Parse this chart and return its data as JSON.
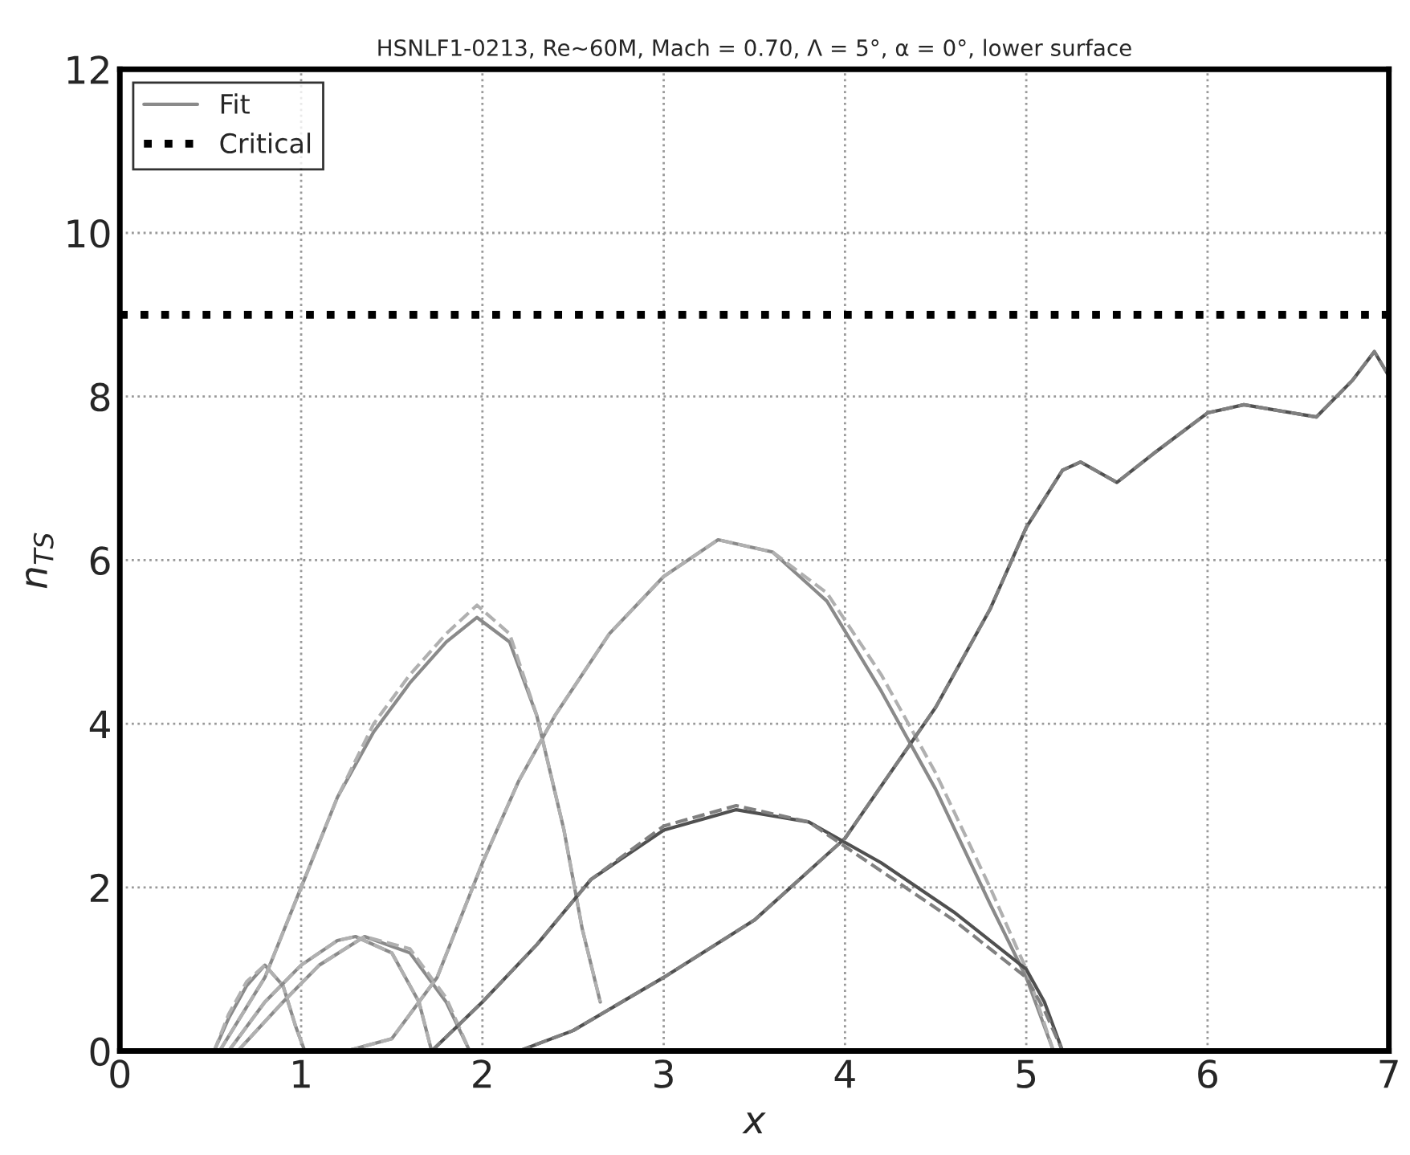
{
  "chart_data": {
    "type": "line",
    "title": "HSNLF1-0213, Re~60M, Mach = 0.70, Λ = 5°, α = 0°, lower surface",
    "xlabel": "x",
    "ylabel": "n$_{TS}$",
    "xlim": [
      0,
      7
    ],
    "xticks": [
      0,
      1,
      2,
      3,
      4,
      5,
      6,
      7
    ],
    "ylim": [
      0,
      12
    ],
    "yticks": [
      0,
      2,
      4,
      6,
      8,
      10,
      12
    ],
    "grid": true,
    "legend": "top left",
    "series": [
      {
        "name": "Fit",
        "color": "#8a8a8a",
        "line_style": "solid",
        "x": [
          0.52,
          0.6,
          0.7,
          0.8,
          0.9,
          0.97,
          1.02
        ],
        "values": [
          0,
          0.4,
          0.8,
          1.05,
          0.8,
          0.3,
          0
        ]
      },
      {
        "color": "#b0b0b0",
        "line_style": "dashed",
        "x": [
          0.52,
          0.6,
          0.7,
          0.8,
          0.9,
          0.97,
          1.02
        ],
        "values": [
          0,
          0.45,
          0.85,
          1.05,
          0.8,
          0.3,
          0
        ]
      },
      {
        "color": "#8a8a8a",
        "line_style": "solid",
        "x": [
          0.6,
          0.8,
          1.0,
          1.2,
          1.3,
          1.5,
          1.65,
          1.72
        ],
        "values": [
          0,
          0.6,
          1.05,
          1.35,
          1.4,
          1.2,
          0.6,
          0
        ]
      },
      {
        "color": "#b0b0b0",
        "line_style": "dashed",
        "x": [
          0.6,
          0.8,
          1.0,
          1.2,
          1.3,
          1.5,
          1.65,
          1.72
        ],
        "values": [
          0,
          0.6,
          1.05,
          1.35,
          1.4,
          1.2,
          0.6,
          0
        ]
      },
      {
        "color": "#8a8a8a",
        "line_style": "solid",
        "x": [
          0.65,
          0.9,
          1.1,
          1.35,
          1.6,
          1.8,
          1.93
        ],
        "values": [
          0,
          0.6,
          1.05,
          1.4,
          1.2,
          0.6,
          0
        ]
      },
      {
        "color": "#b0b0b0",
        "line_style": "dashed",
        "x": [
          0.65,
          0.9,
          1.1,
          1.35,
          1.6,
          1.8,
          1.93
        ],
        "values": [
          0,
          0.6,
          1.05,
          1.4,
          1.25,
          0.65,
          0
        ]
      },
      {
        "color": "#8a8a8a",
        "line_style": "solid",
        "x": [
          0.55,
          0.8,
          1.0,
          1.2,
          1.4,
          1.6,
          1.8,
          1.97,
          2.15,
          2.3,
          2.45,
          2.55,
          2.65
        ],
        "values": [
          0,
          0.9,
          2.0,
          3.1,
          3.9,
          4.5,
          5.0,
          5.3,
          5.0,
          4.1,
          2.7,
          1.5,
          0.6
        ]
      },
      {
        "color": "#b0b0b0",
        "line_style": "dashed",
        "x": [
          0.55,
          0.8,
          1.0,
          1.2,
          1.4,
          1.6,
          1.8,
          1.97,
          2.15,
          2.3,
          2.45,
          2.55,
          2.65
        ],
        "values": [
          0,
          0.9,
          2.0,
          3.1,
          4.0,
          4.6,
          5.1,
          5.45,
          5.1,
          4.1,
          2.7,
          1.5,
          0.6
        ]
      },
      {
        "color": "#8a8a8a",
        "line_style": "solid",
        "x": [
          1.25,
          1.5,
          1.75,
          2.0,
          2.2,
          2.4,
          2.7,
          3.0,
          3.3,
          3.6,
          3.9,
          4.2,
          4.5,
          4.8,
          5.0,
          5.15
        ],
        "values": [
          0,
          0.15,
          0.9,
          2.3,
          3.3,
          4.1,
          5.1,
          5.8,
          6.25,
          6.1,
          5.5,
          4.4,
          3.2,
          1.8,
          0.9,
          0
        ]
      },
      {
        "color": "#b0b0b0",
        "line_style": "dashed",
        "x": [
          1.25,
          1.5,
          1.75,
          2.0,
          2.2,
          2.4,
          2.7,
          3.0,
          3.3,
          3.6,
          3.9,
          4.2,
          4.5,
          4.8,
          5.0,
          5.15
        ],
        "values": [
          0,
          0.15,
          0.9,
          2.3,
          3.3,
          4.1,
          5.1,
          5.8,
          6.25,
          6.1,
          5.6,
          4.6,
          3.4,
          2.0,
          1.0,
          0
        ]
      },
      {
        "color": "#505050",
        "line_style": "solid",
        "x": [
          1.72,
          2.0,
          2.3,
          2.6,
          3.0,
          3.4,
          3.8,
          4.2,
          4.6,
          5.0,
          5.1,
          5.2
        ],
        "values": [
          0,
          0.6,
          1.3,
          2.1,
          2.7,
          2.95,
          2.8,
          2.3,
          1.7,
          1.0,
          0.6,
          0
        ]
      },
      {
        "color": "#808080",
        "line_style": "dashed",
        "x": [
          1.72,
          2.0,
          2.3,
          2.6,
          3.0,
          3.4,
          3.8,
          4.2,
          4.6,
          5.0,
          5.1,
          5.2
        ],
        "values": [
          0,
          0.6,
          1.3,
          2.1,
          2.75,
          3.0,
          2.8,
          2.2,
          1.6,
          0.9,
          0.5,
          0
        ]
      },
      {
        "color": "#505050",
        "line_style": "solid",
        "x": [
          2.2,
          2.5,
          3.0,
          3.5,
          4.0,
          4.5,
          4.8,
          5.0,
          5.2,
          5.3,
          5.5,
          5.7,
          6.0,
          6.2,
          6.6,
          6.8,
          6.92,
          7.0
        ],
        "values": [
          0,
          0.25,
          0.9,
          1.6,
          2.6,
          4.2,
          5.4,
          6.4,
          7.1,
          7.2,
          6.95,
          7.3,
          7.8,
          7.9,
          7.75,
          8.2,
          8.55,
          8.25
        ]
      },
      {
        "color": "#808080",
        "line_style": "dashed",
        "x": [
          2.2,
          2.5,
          3.0,
          3.5,
          4.0,
          4.5,
          4.8,
          5.0,
          5.2,
          5.3,
          5.5,
          5.7,
          6.0,
          6.2,
          6.6,
          6.8,
          6.92,
          7.0
        ],
        "values": [
          0,
          0.25,
          0.9,
          1.6,
          2.6,
          4.2,
          5.4,
          6.4,
          7.1,
          7.2,
          6.95,
          7.3,
          7.8,
          7.9,
          7.75,
          8.2,
          8.55,
          8.25
        ]
      }
    ],
    "ref_lines": [
      {
        "axis": "y",
        "value": 9,
        "label": "Critical",
        "color": "#000000",
        "line_style": "dotted"
      }
    ]
  }
}
